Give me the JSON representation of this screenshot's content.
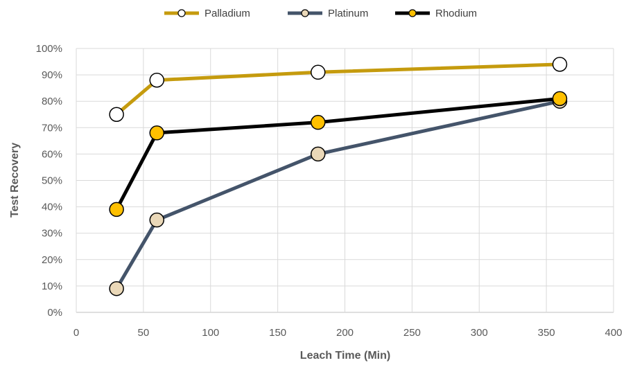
{
  "chart_data": {
    "type": "line",
    "xlabel": "Leach Time (Min)",
    "ylabel": "Test Recovery",
    "xlim": [
      0,
      400
    ],
    "ylim": [
      0,
      100
    ],
    "x_ticks": [
      "0",
      "50",
      "100",
      "150",
      "200",
      "250",
      "300",
      "350",
      "400"
    ],
    "y_ticks": [
      "0%",
      "10%",
      "20%",
      "30%",
      "40%",
      "50%",
      "60%",
      "70%",
      "80%",
      "90%",
      "100%"
    ],
    "grid": true,
    "legend_position": "top",
    "series": [
      {
        "name": "Palladium",
        "color": "#C59B0E",
        "marker_fill": "#FFFFFF",
        "x": [
          30,
          60,
          180,
          360
        ],
        "values": [
          75,
          88,
          91,
          94
        ]
      },
      {
        "name": "Platinum",
        "color": "#44546A",
        "marker_fill": "#EAD8B8",
        "x": [
          30,
          60,
          180,
          360
        ],
        "values": [
          9,
          35,
          60,
          80
        ]
      },
      {
        "name": "Rhodium",
        "color": "#000000",
        "marker_fill": "#FFC000",
        "x": [
          30,
          60,
          180,
          360
        ],
        "values": [
          39,
          68,
          72,
          81
        ]
      }
    ]
  }
}
